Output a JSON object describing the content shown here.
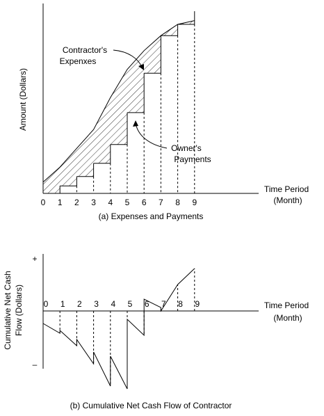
{
  "chart_data": [
    {
      "type": "line",
      "panel": "a",
      "caption": "(a) Expenses and Payments",
      "xlabel": "Time Period (Month)",
      "xlabel_lines": [
        "Time Period",
        "(Month)"
      ],
      "ylabel": "Amount (Dollars)",
      "x_ticks": [
        "0",
        "1",
        "2",
        "3",
        "4",
        "5",
        "6",
        "7",
        "8",
        "9"
      ],
      "xlim": [
        0,
        9
      ],
      "grid": false,
      "annotations": [
        {
          "lines": [
            "Contractor's",
            "Expenxes"
          ],
          "target": "contractor-expenses-curve"
        },
        {
          "lines": [
            "Owner's",
            "Payments"
          ],
          "target": "owner-payments-steps"
        }
      ],
      "series": [
        {
          "id": "contractor-expenses",
          "style": "line",
          "x": [
            0,
            1,
            2,
            3,
            4,
            5,
            6,
            7,
            8,
            9
          ],
          "y": [
            0.06,
            0.14,
            0.24,
            0.34,
            0.51,
            0.66,
            0.76,
            0.84,
            0.9,
            0.92
          ]
        },
        {
          "id": "owner-payments",
          "style": "step",
          "x": [
            0,
            1,
            2,
            3,
            4,
            5,
            6,
            7,
            8,
            9
          ],
          "y": [
            0,
            0.04,
            0.09,
            0.16,
            0.26,
            0.43,
            0.64,
            0.84,
            0.9,
            0.9
          ]
        }
      ]
    },
    {
      "type": "line",
      "panel": "b",
      "caption": "(b) Cumulative Net Cash Flow of Contractor",
      "xlabel": "Time Period (Month)",
      "xlabel_lines": [
        "Time Period",
        "(Month)"
      ],
      "ylabel": "Cumulative Net Cash Flow (Dollars)",
      "ylabel_lines": [
        "Cumulative Net Cash",
        "Flow (Dollars)"
      ],
      "y_ends": {
        "top": "+",
        "bottom": "–"
      },
      "x_ticks": [
        "0",
        "1",
        "2",
        "3",
        "4",
        "5",
        "6",
        "7",
        "8",
        "9"
      ],
      "xlim": [
        0,
        9
      ],
      "grid": false,
      "series": [
        {
          "id": "net-cash-flow",
          "style": "sawtooth",
          "segments": [
            {
              "x_start": 0,
              "x_end": 1,
              "y_start": -0.18,
              "y_end": -0.32
            },
            {
              "x_start": 1,
              "x_end": 2,
              "y_start": -0.28,
              "y_end": -0.5
            },
            {
              "x_start": 2,
              "x_end": 3,
              "y_start": -0.41,
              "y_end": -0.76
            },
            {
              "x_start": 3,
              "x_end": 4,
              "y_start": -0.59,
              "y_end": -1.08
            },
            {
              "x_start": 4,
              "x_end": 5,
              "y_start": -0.65,
              "y_end": -1.12
            },
            {
              "x_start": 5,
              "x_end": 6,
              "y_start": -0.12,
              "y_end": -0.35
            },
            {
              "x_start": 6,
              "x_end": 7,
              "y_start": 0.17,
              "y_end": 0.05
            },
            {
              "x_start": 7,
              "x_end": 8,
              "y_start": 0,
              "y_end": 0.38
            },
            {
              "x_start": 8,
              "x_end": 9,
              "y_start": 0.38,
              "y_end": 0.61
            }
          ]
        }
      ]
    }
  ]
}
